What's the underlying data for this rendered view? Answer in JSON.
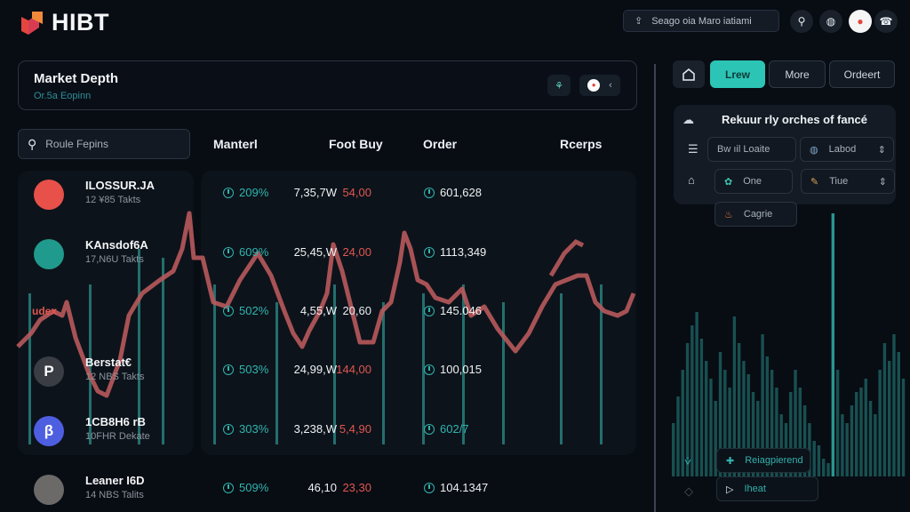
{
  "app": {
    "brand": "HIBT",
    "search_placeholder": "Seago oia Maro iatiami",
    "header_icons": [
      "search-icon",
      "globe-icon",
      "avatar-icon",
      "phone-icon"
    ]
  },
  "market_depth": {
    "title": "Market Depth",
    "subtitle": "Or.5a Eopinn"
  },
  "table": {
    "search_placeholder": "Roule Fepins",
    "columns": [
      "Manterl",
      "Foot Buy",
      "Order",
      "Rcerps"
    ],
    "rows": [
      {
        "name": "ILOSSUR.JA",
        "sub": "12 ¥85 Takts",
        "pct": "209%",
        "price": "54,00",
        "order": "601,628",
        "recps": "7,35,7W",
        "avatar_color": "#e8504a",
        "avatar_glyph": "",
        "price_color": "red",
        "order_color": "white"
      },
      {
        "name": "KAnsdof6A",
        "sub": "17,N6U Takts",
        "pct": "609%",
        "price": "24,00",
        "order": "1113,349",
        "recps": "25,45,W",
        "avatar_color": "#1f9a8c",
        "avatar_glyph": "",
        "price_color": "red",
        "order_color": "white"
      },
      {
        "name": "",
        "sub": "",
        "pct": "502%",
        "price": "20,60",
        "order": "145.046",
        "recps": "4,55,W",
        "avatar_color": "",
        "avatar_glyph": "",
        "price_color": "white",
        "order_color": "white"
      },
      {
        "name": "Berstat€",
        "sub": "12 NBS Takts",
        "pct": "503%",
        "price": "144,00",
        "order": "100,015",
        "recps": "24,99,W",
        "avatar_color": "#3a3d44",
        "avatar_glyph": "P",
        "price_color": "red",
        "order_color": "white"
      },
      {
        "name": "1CB8H6 rB",
        "sub": "10FHR Dekate",
        "pct": "303%",
        "price": "5,4,90",
        "order": "602/7",
        "recps": "3,238,W",
        "avatar_color": "#4d5fe0",
        "avatar_glyph": "β",
        "price_color": "red",
        "order_color": "teal"
      },
      {
        "name": "Leaner I6D",
        "sub": "14 NBS Talits",
        "pct": "509%",
        "price": "23,30",
        "order": "104.1347",
        "recps": "46,10",
        "avatar_color": "#6b6a68",
        "avatar_glyph": "",
        "price_color": "red",
        "order_color": "white"
      }
    ]
  },
  "overlay_chart": {
    "label": "udex",
    "line_color": "#b85a5c",
    "bar_color": "#2b8f8a"
  },
  "right_panel": {
    "tabs": [
      {
        "label": "Lrew",
        "active": true
      },
      {
        "label": "More",
        "active": false
      },
      {
        "label": "Ordeert",
        "active": false
      }
    ],
    "filter": {
      "title": "Rekuur rly orches of fancé",
      "field1": "Bw  ıil Loaite",
      "field2": "Labod",
      "field3": "One",
      "field4": "Tiue",
      "field5": "Cagrie"
    },
    "bottom_buttons": [
      "Reiagpierend",
      "Iheat"
    ]
  },
  "colors": {
    "accent": "#2cc4b5",
    "negative": "#e0574f",
    "background": "#080c13"
  }
}
